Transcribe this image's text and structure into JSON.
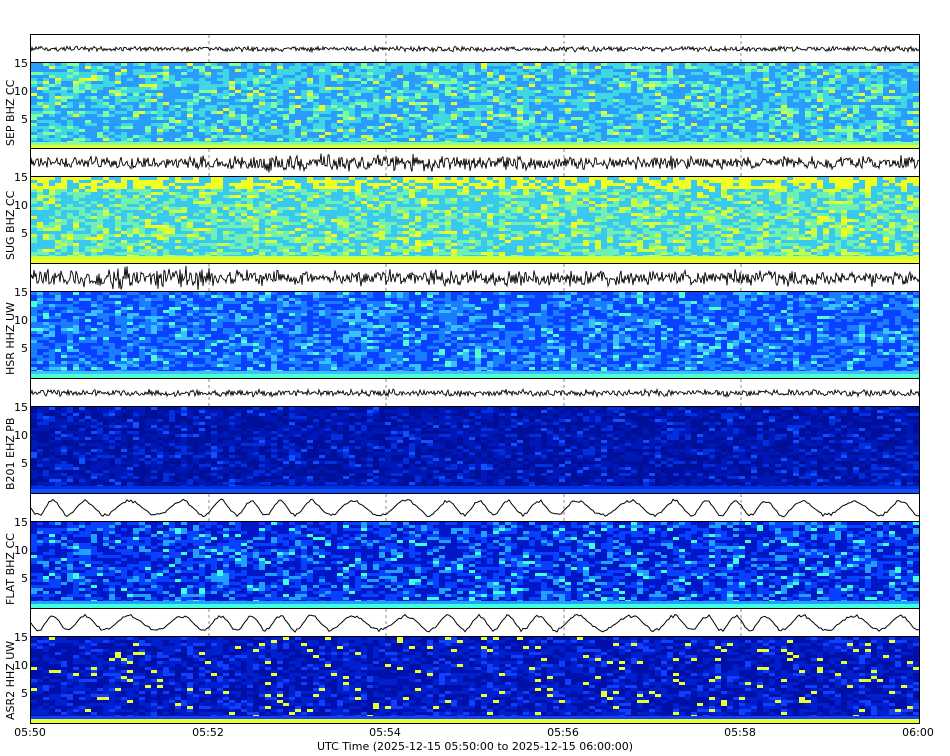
{
  "chart_data": {
    "type": "heatmap",
    "title": "",
    "xlabel": "UTC Time (2025-12-15 05:50:00 to 2025-12-15 06:00:00)",
    "x_ticks": [
      "05:50",
      "05:52",
      "05:54",
      "05:56",
      "05:58",
      "06:00"
    ],
    "y_ticks": [
      "5",
      "10",
      "15"
    ],
    "ylim": [
      0,
      15
    ],
    "grid": true,
    "panels": [
      {
        "station": "SEP BHZ CC",
        "spectrogram_color": "cyan-green mixed, yellow at low freq",
        "waveform": "low amplitude, slight burst near 05:51 and 05:55"
      },
      {
        "station": "SUG BHZ CC",
        "spectrogram_color": "cyan-yellow, strong yellow 12-15 Hz",
        "waveform": "moderate noisy, bursts near 05:52-05:54"
      },
      {
        "station": "HSR HHZ UW",
        "spectrogram_color": "blue with cyan streaks",
        "waveform": "bursts near 05:50-05:52 and 05:55"
      },
      {
        "station": "B201 EHZ PB",
        "spectrogram_color": "dark blue",
        "waveform": "low steady noise"
      },
      {
        "station": "FLAT BHZ CC",
        "spectrogram_color": "blue, cyan at low freq",
        "waveform": "long-period oscillation"
      },
      {
        "station": "ASR2 HHZ UW",
        "spectrogram_color": "dark blue, yellow band at lowest freq",
        "waveform": "long-period oscillation"
      }
    ]
  },
  "axis": {
    "xlabel": "UTC Time (2025-12-15 05:50:00 to 2025-12-15 06:00:00)",
    "xticks": [
      "05:50",
      "05:52",
      "05:54",
      "05:56",
      "05:58",
      "06:00"
    ],
    "yticks": [
      "15",
      "10",
      "5"
    ]
  },
  "panels": [
    {
      "label": "SEP BHZ CC"
    },
    {
      "label": "SUG BHZ CC"
    },
    {
      "label": "HSR HHZ UW"
    },
    {
      "label": "B201 EHZ PB"
    },
    {
      "label": "FLAT BHZ CC"
    },
    {
      "label": "ASR2 HHZ UW"
    }
  ]
}
